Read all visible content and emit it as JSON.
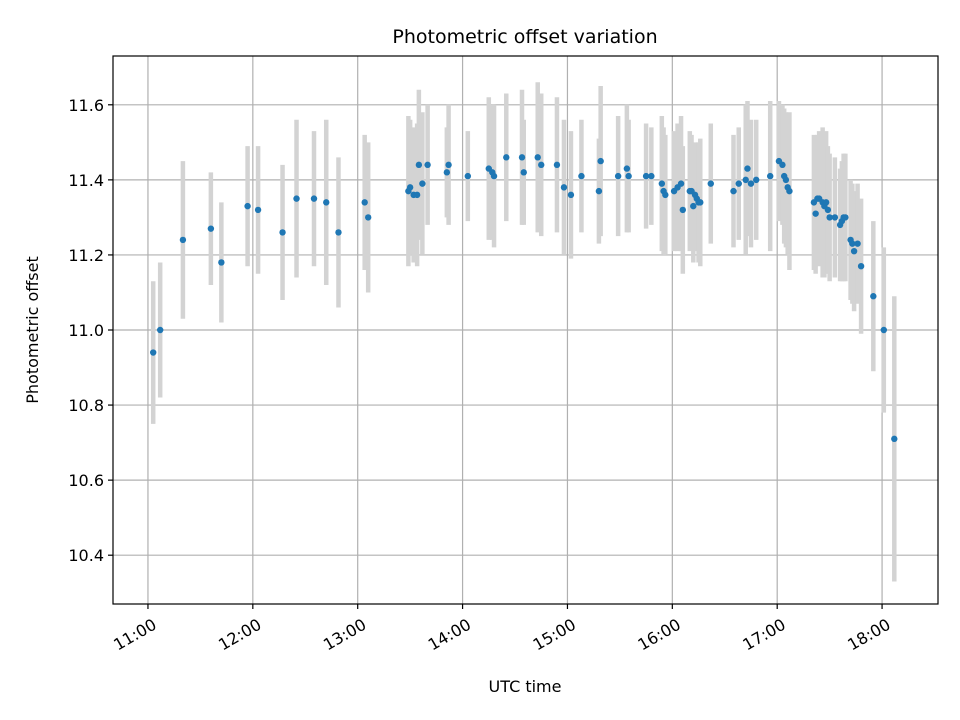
{
  "chart_data": {
    "type": "scatter",
    "title": "Photometric offset variation",
    "xlabel": "UTC time",
    "ylabel": "Photometric offset",
    "grid": true,
    "x_ticks": [
      "11:00",
      "12:00",
      "13:00",
      "14:00",
      "15:00",
      "16:00",
      "17:00",
      "18:00"
    ],
    "y_ticks": [
      "10.4",
      "10.6",
      "10.8",
      "11.0",
      "11.2",
      "11.4",
      "11.6"
    ],
    "xlim": [
      "10:40",
      "18:32"
    ],
    "ylim": [
      10.27,
      11.73
    ],
    "colors": {
      "point": "#1f77b4",
      "errorbar": "#d3d3d3",
      "grid": "#b0b0b0"
    },
    "series": [
      {
        "x": [
          "11:03",
          "11:07",
          "11:20",
          "11:36",
          "11:42",
          "11:57",
          "12:03",
          "12:17",
          "12:25",
          "12:35",
          "12:42",
          "12:49",
          "13:04",
          "13:06",
          "13:29",
          "13:30",
          "13:32",
          "13:34",
          "13:35",
          "13:37",
          "13:40",
          "13:51",
          "13:52",
          "14:03",
          "14:15",
          "14:17",
          "14:18",
          "14:25",
          "14:34",
          "14:35",
          "14:43",
          "14:45",
          "14:54",
          "14:58",
          "15:02",
          "15:08",
          "15:18",
          "15:19",
          "15:29",
          "15:34",
          "15:35",
          "15:45",
          "15:48",
          "15:54",
          "15:55",
          "15:56",
          "16:01",
          "16:03",
          "16:05",
          "16:06",
          "16:10",
          "16:11",
          "16:12",
          "16:13",
          "16:14",
          "16:15",
          "16:16",
          "16:22",
          "16:35",
          "16:38",
          "16:42",
          "16:43",
          "16:45",
          "16:48",
          "16:56",
          "17:01",
          "17:03",
          "17:04",
          "17:05",
          "17:06",
          "17:07",
          "17:21",
          "17:22",
          "17:23",
          "17:24",
          "17:26",
          "17:27",
          "17:28",
          "17:29",
          "17:30",
          "17:33",
          "17:36",
          "17:37",
          "17:38",
          "17:39",
          "17:42",
          "17:43",
          "17:44",
          "17:46",
          "17:48",
          "17:55",
          "18:01",
          "18:07"
        ],
        "y": [
          10.94,
          11.0,
          11.24,
          11.27,
          11.18,
          11.33,
          11.32,
          11.26,
          11.35,
          11.35,
          11.34,
          11.26,
          11.34,
          11.3,
          11.37,
          11.38,
          11.36,
          11.36,
          11.44,
          11.39,
          11.44,
          11.42,
          11.44,
          11.41,
          11.43,
          11.42,
          11.41,
          11.46,
          11.46,
          11.42,
          11.46,
          11.44,
          11.44,
          11.38,
          11.36,
          11.41,
          11.37,
          11.45,
          11.41,
          11.43,
          11.41,
          11.41,
          11.41,
          11.39,
          11.37,
          11.36,
          11.37,
          11.38,
          11.39,
          11.32,
          11.37,
          11.37,
          11.33,
          11.36,
          11.35,
          11.34,
          11.34,
          11.39,
          11.37,
          11.39,
          11.4,
          11.43,
          11.39,
          11.4,
          11.41,
          11.45,
          11.44,
          11.41,
          11.4,
          11.38,
          11.37,
          11.34,
          11.31,
          11.35,
          11.35,
          11.34,
          11.33,
          11.34,
          11.32,
          11.3,
          11.3,
          11.28,
          11.29,
          11.3,
          11.3,
          11.24,
          11.23,
          11.21,
          11.23,
          11.17,
          11.09,
          11.0,
          10.71
        ],
        "err": [
          0.19,
          0.18,
          0.21,
          0.15,
          0.16,
          0.16,
          0.17,
          0.18,
          0.21,
          0.18,
          0.22,
          0.2,
          0.18,
          0.2,
          0.2,
          0.18,
          0.18,
          0.19,
          0.2,
          0.19,
          0.16,
          0.12,
          0.16,
          0.12,
          0.19,
          0.18,
          0.19,
          0.17,
          0.18,
          0.14,
          0.2,
          0.19,
          0.18,
          0.18,
          0.17,
          0.15,
          0.14,
          0.2,
          0.16,
          0.17,
          0.15,
          0.14,
          0.13,
          0.18,
          0.17,
          0.16,
          0.16,
          0.17,
          0.18,
          0.17,
          0.16,
          0.15,
          0.15,
          0.14,
          0.14,
          0.16,
          0.17,
          0.16,
          0.15,
          0.15,
          0.2,
          0.18,
          0.17,
          0.16,
          0.2,
          0.16,
          0.16,
          0.18,
          0.18,
          0.18,
          0.21,
          0.18,
          0.16,
          0.17,
          0.18,
          0.2,
          0.19,
          0.19,
          0.17,
          0.17,
          0.16,
          0.15,
          0.16,
          0.17,
          0.17,
          0.16,
          0.16,
          0.16,
          0.16,
          0.18,
          0.2,
          0.22,
          0.38
        ]
      }
    ]
  }
}
